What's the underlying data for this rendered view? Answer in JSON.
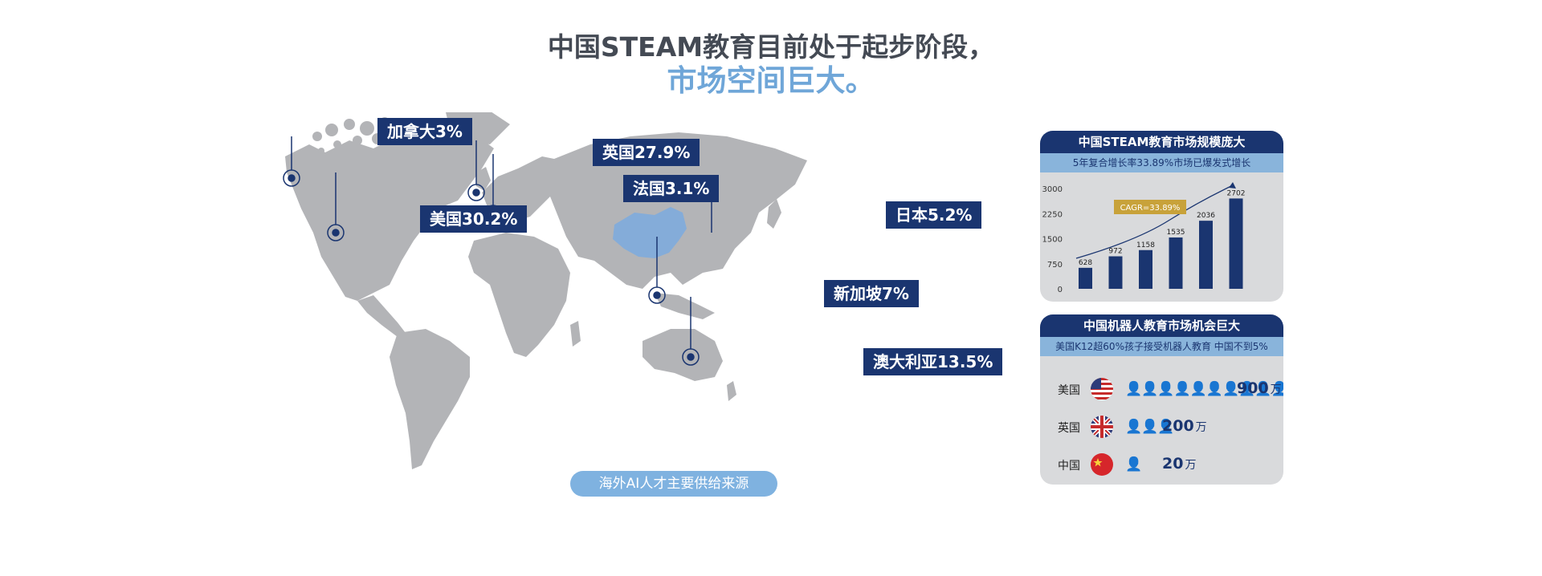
{
  "header": {
    "line1": "中国STEAM教育目前处于起步阶段，",
    "line2": "市场空间巨大。"
  },
  "map": {
    "labels": [
      {
        "id": "canada",
        "text": "加拿大3%"
      },
      {
        "id": "usa",
        "text": "美国30.2%"
      },
      {
        "id": "uk",
        "text": "英国27.9%"
      },
      {
        "id": "france",
        "text": "法国3.1%"
      },
      {
        "id": "japan",
        "text": "日本5.2%"
      },
      {
        "id": "singapore",
        "text": "新加坡7%"
      },
      {
        "id": "australia",
        "text": "澳大利亚13.5%"
      }
    ],
    "caption": "海外AI人才主要供给来源",
    "colors": {
      "land": "#b3b4b7",
      "china": "#84acd9",
      "tag": "#1a3570"
    }
  },
  "chart_data": {
    "type": "bar",
    "title": "中国STEAM教育市场规模庞大",
    "subtitle": "5年复合增长率33.89%市场已爆发式增长",
    "annotation": "CAGR=33.89%",
    "values": [
      628,
      972,
      1158,
      1535,
      2036,
      2702
    ],
    "ylim": [
      0,
      3000
    ],
    "yticks": [
      0,
      750,
      1500,
      2250,
      3000
    ],
    "grid": false,
    "bar_color": "#1a3570"
  },
  "robot": {
    "title": "中国机器人教育市场机会巨大",
    "subtitle": "美国K12超60%孩子接受机器人教育 中国不到5%",
    "rows": [
      {
        "country": "美国",
        "flag": "us-flag",
        "count": "900",
        "unit": "万",
        "people": 12
      },
      {
        "country": "英国",
        "flag": "uk-flag",
        "count": "200",
        "unit": "万",
        "people": 3
      },
      {
        "country": "中国",
        "flag": "cn-flag",
        "count": "20",
        "unit": "万",
        "people": 1
      }
    ]
  }
}
